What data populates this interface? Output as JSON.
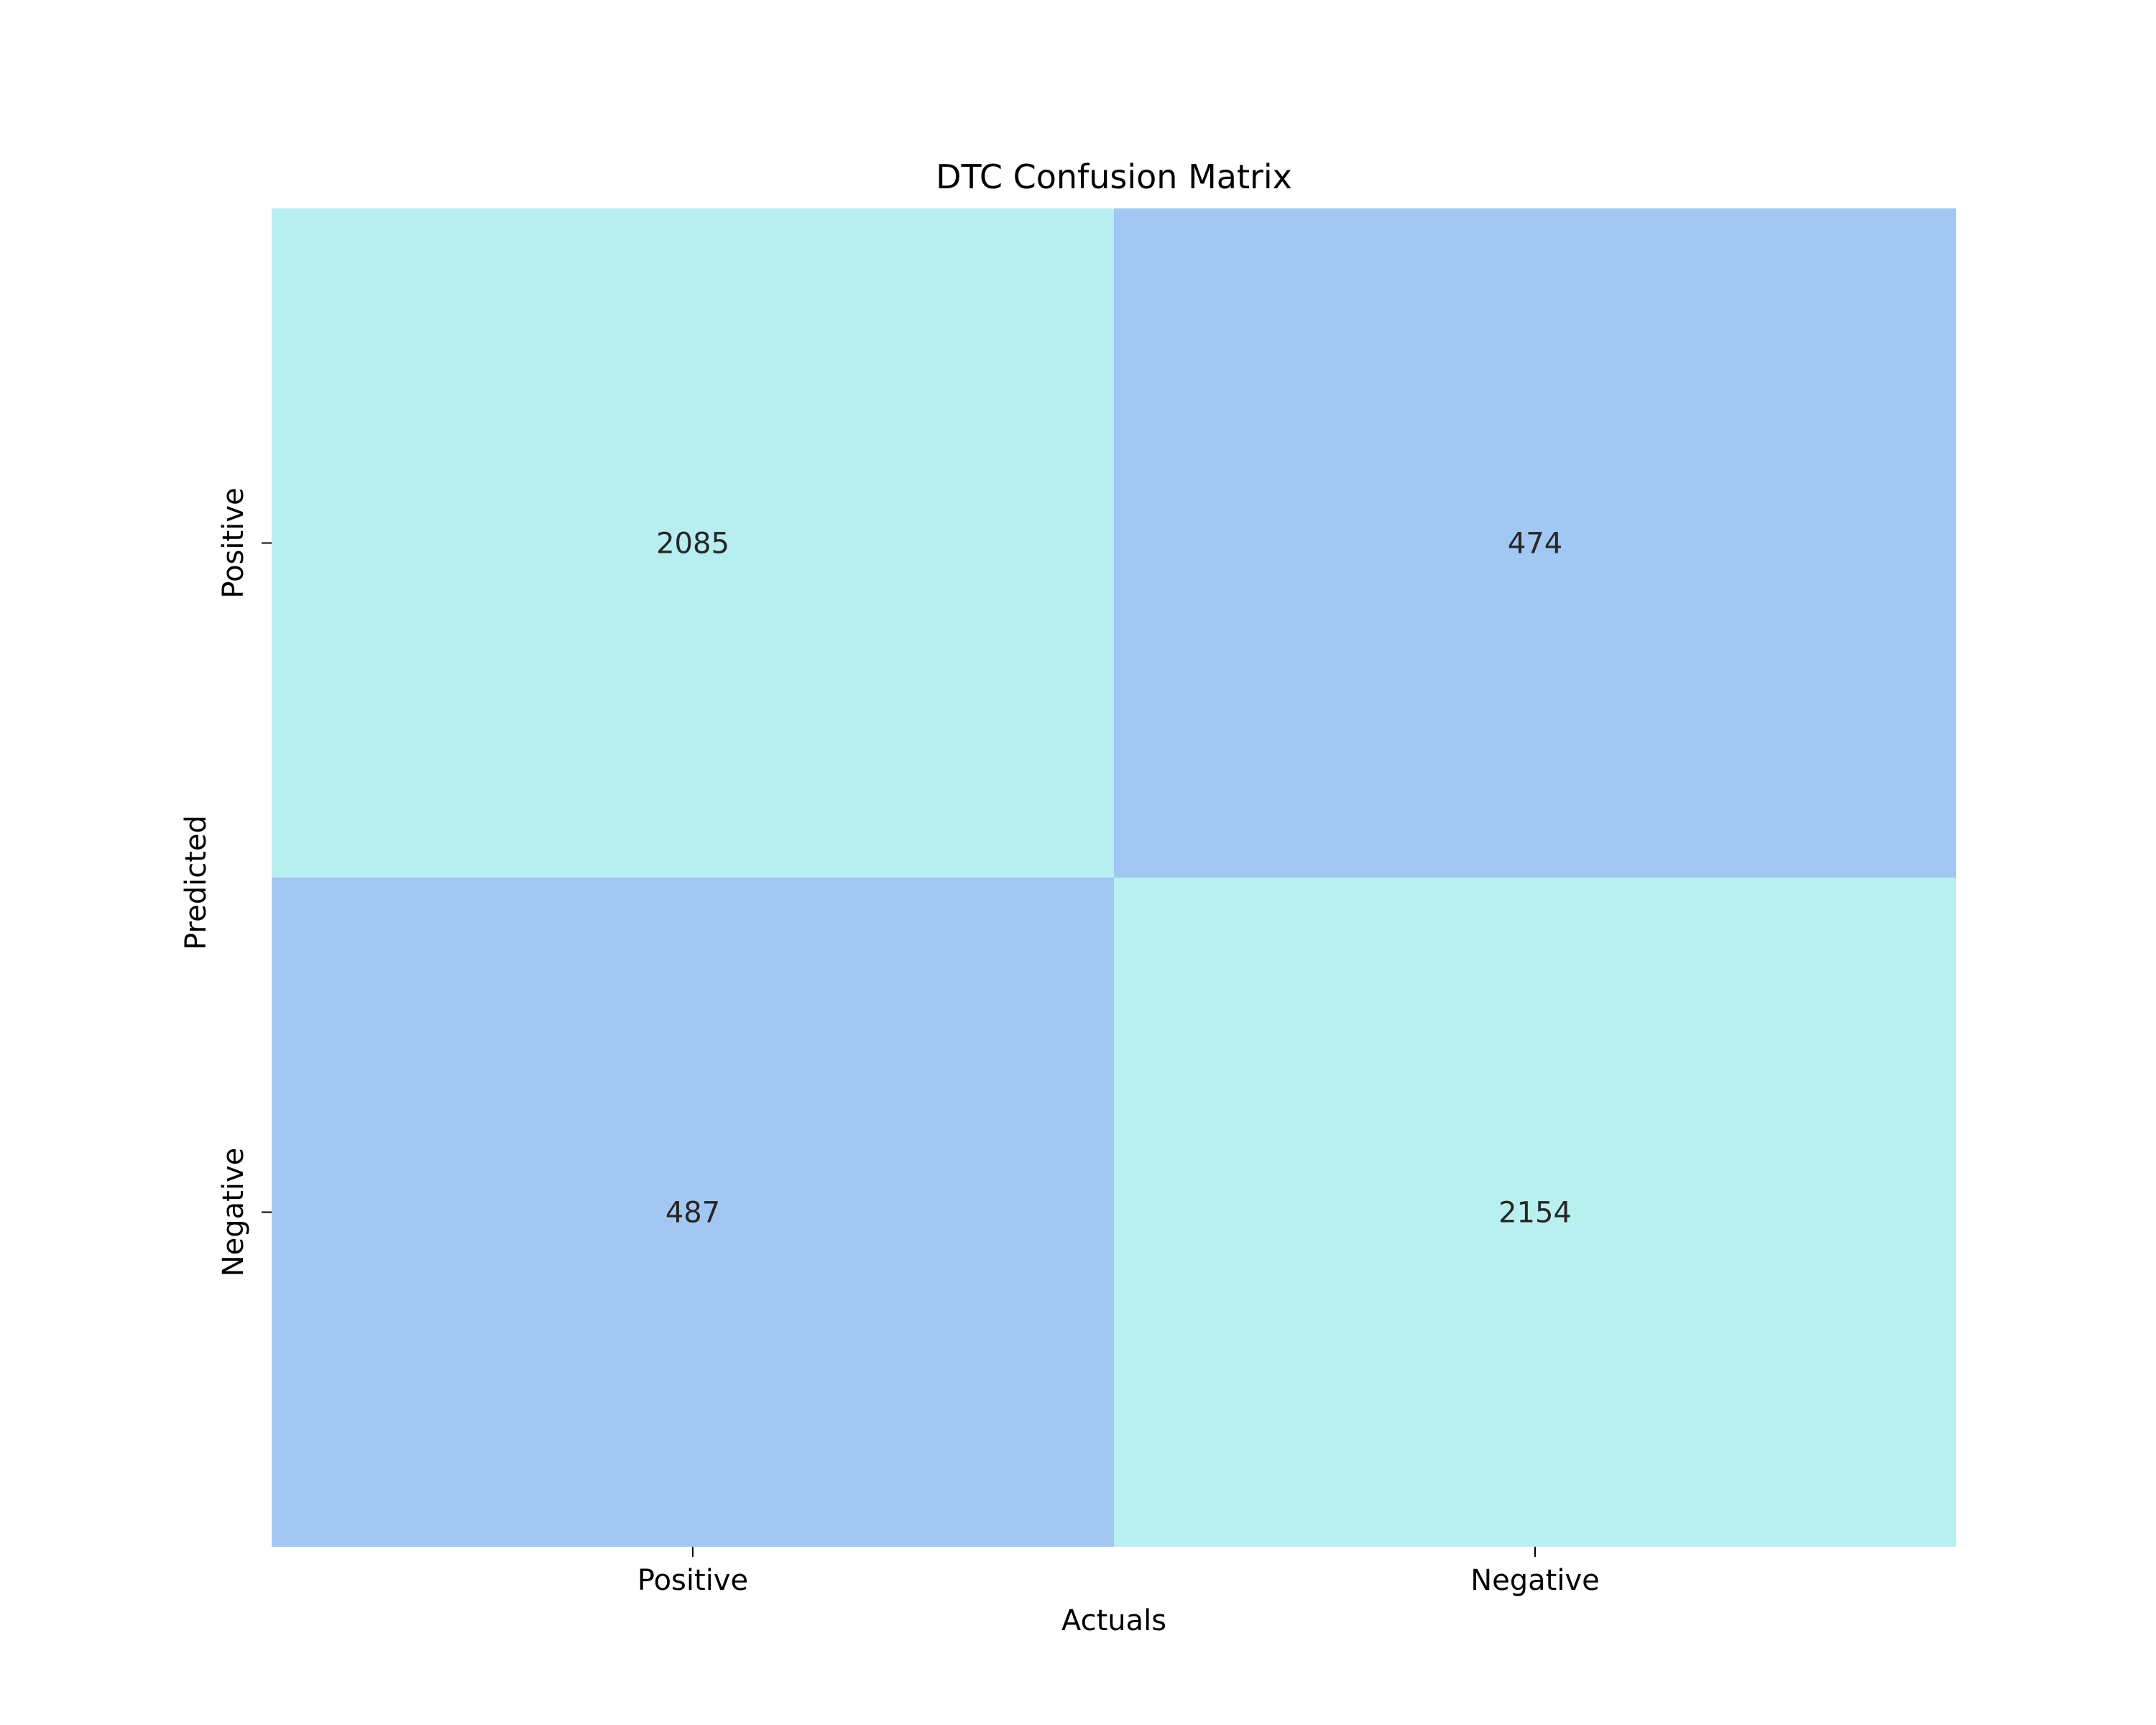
{
  "chart_data": {
    "type": "heatmap",
    "title": "DTC Confusion Matrix",
    "xlabel": "Actuals",
    "ylabel": "Predicted",
    "x_categories": [
      "Positive",
      "Negative"
    ],
    "y_categories": [
      "Positive",
      "Negative"
    ],
    "values": [
      [
        2085,
        474
      ],
      [
        487,
        2154
      ]
    ],
    "colors": {
      "high": "#b8f0ef",
      "low": "#a2c7f3",
      "text": "#262626",
      "tick": "#000000"
    },
    "grid": false,
    "colorbar": false
  }
}
